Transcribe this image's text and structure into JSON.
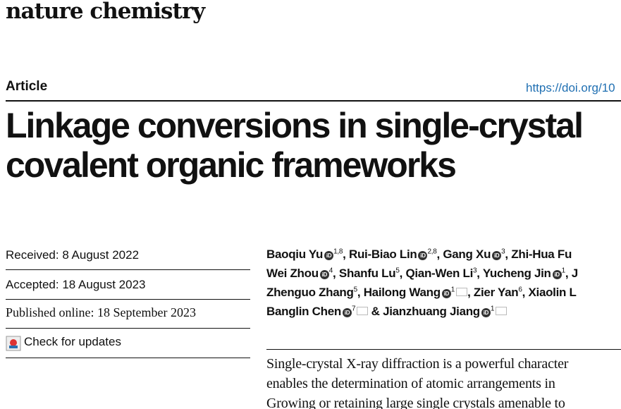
{
  "header": {
    "journal": "nature chemistry",
    "article_type": "Article",
    "doi": "https://doi.org/10"
  },
  "title": [
    "Linkage conversions in single-crystal",
    "covalent organic frameworks"
  ],
  "dates": {
    "received": "Received: 8 August 2022",
    "accepted": "Accepted: 18 August 2023",
    "published": "Published online: 18 September 2023",
    "updates": "Check for updates"
  },
  "authors": [
    [
      {
        "name": "Baoqiu Yu",
        "orcid": true,
        "sup": "1,8",
        "after": ", "
      },
      {
        "name": "Rui-Biao Lin",
        "orcid": true,
        "sup": "2,8",
        "after": ", "
      },
      {
        "name": "Gang Xu",
        "orcid": true,
        "sup": "3",
        "after": ", "
      },
      {
        "name": "Zhi-Hua Fu",
        "orcid": false,
        "sup": "",
        "after": ""
      }
    ],
    [
      {
        "name": "Wei Zhou",
        "orcid": true,
        "sup": "4",
        "after": ", "
      },
      {
        "name": "Shanfu Lu",
        "orcid": false,
        "sup": "5",
        "after": ", "
      },
      {
        "name": "Qian-Wen Li",
        "orcid": false,
        "sup": "3",
        "after": ", "
      },
      {
        "name": "Yucheng Jin",
        "orcid": true,
        "sup": "1",
        "after": ", J"
      }
    ],
    [
      {
        "name": "Zhenguo Zhang",
        "orcid": false,
        "sup": "5",
        "after": ", "
      },
      {
        "name": "Hailong Wang",
        "orcid": true,
        "sup": "1",
        "email": true,
        "after": ", "
      },
      {
        "name": "Zier Yan",
        "orcid": false,
        "sup": "6",
        "after": ", "
      },
      {
        "name": "Xiaolin L",
        "orcid": false,
        "sup": "",
        "after": ""
      }
    ],
    [
      {
        "name": "Banglin Chen",
        "orcid": true,
        "sup": "7",
        "email": true,
        "after": " & "
      },
      {
        "name": "Jianzhuang Jiang",
        "orcid": true,
        "sup": "1",
        "email": true,
        "after": ""
      }
    ]
  ],
  "abstract": [
    "Single-crystal X-ray diffraction is a powerful character",
    "enables the determination of atomic arrangements in",
    "Growing or retaining large single crystals amenable to"
  ]
}
